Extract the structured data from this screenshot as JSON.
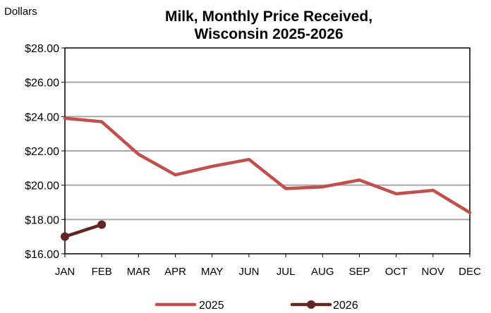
{
  "chart_data": {
    "type": "line",
    "title_lines": [
      "Milk, Monthly Price Received,",
      "Wisconsin 2025-2026"
    ],
    "y_unit_label": "Dollars",
    "categories": [
      "JAN",
      "FEB",
      "MAR",
      "APR",
      "MAY",
      "JUN",
      "JUL",
      "AUG",
      "SEP",
      "OCT",
      "NOV",
      "DEC"
    ],
    "ylim": [
      16,
      28
    ],
    "y_ticks": [
      16,
      18,
      20,
      22,
      24,
      26,
      28
    ],
    "y_tick_labels": [
      "$16.00",
      "$18.00",
      "$20.00",
      "$22.00",
      "$24.00",
      "$26.00",
      "$28.00"
    ],
    "grid": true,
    "legend_position": "bottom",
    "series": [
      {
        "name": "2025",
        "color": "#c0504d",
        "markers": false,
        "values": [
          23.9,
          23.7,
          21.8,
          20.6,
          21.1,
          21.5,
          19.8,
          19.9,
          20.3,
          19.5,
          19.7,
          18.4
        ]
      },
      {
        "name": "2026",
        "color": "#632523",
        "markers": true,
        "values": [
          17.0,
          17.7,
          null,
          null,
          null,
          null,
          null,
          null,
          null,
          null,
          null,
          null
        ]
      }
    ]
  }
}
